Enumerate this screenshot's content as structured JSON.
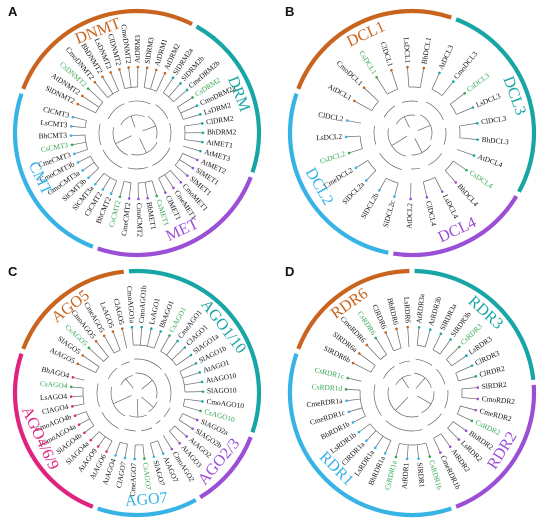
{
  "colors": {
    "highlight": "#34a853",
    "orange": "#c8641e",
    "teal": "#17a5a5",
    "purple": "#9b4fd6",
    "blue": "#37b3e6",
    "magenta": "#e0237f",
    "pink": "#d8328f",
    "darkteal": "#0e8f92"
  },
  "panels": [
    {
      "label": "A",
      "clades": [
        {
          "name": "DNMT",
          "color": "orange",
          "start": -160,
          "end": -62
        },
        {
          "name": "DRM",
          "color": "teal",
          "start": -62,
          "end": 20
        },
        {
          "name": "MET",
          "color": "purple",
          "start": 20,
          "end": 110
        },
        {
          "name": "CMT",
          "color": "blue",
          "start": 110,
          "end": 200
        }
      ],
      "leaves": [
        {
          "t": "SlDNMT2",
          "hl": false
        },
        {
          "t": "AtDNMT2",
          "hl": false
        },
        {
          "t": "CsDNMT2",
          "hl": true
        },
        {
          "t": "CmoDNMT2",
          "hl": false
        },
        {
          "t": "BhDNMT2",
          "hl": false
        },
        {
          "t": "LsDNMT2",
          "hl": false
        },
        {
          "t": "ClDNMT2",
          "hl": false
        },
        {
          "t": "CmeDNMT2",
          "hl": false
        },
        {
          "t": "AtDRM3",
          "hl": false
        },
        {
          "t": "SlDRM3",
          "hl": false
        },
        {
          "t": "AtDRM1",
          "hl": false
        },
        {
          "t": "AtDRM2",
          "hl": false
        },
        {
          "t": "SlDRM2a",
          "hl": false
        },
        {
          "t": "SlDRM2b",
          "hl": false
        },
        {
          "t": "CmeDRM2b",
          "hl": false
        },
        {
          "t": "CsDRM2",
          "hl": true
        },
        {
          "t": "CmoDRM2a",
          "hl": false
        },
        {
          "t": "LsDRM2",
          "hl": false
        },
        {
          "t": "ClDRM2",
          "hl": false
        },
        {
          "t": "BhDRM2",
          "hl": false
        },
        {
          "t": "AtMET1",
          "hl": false
        },
        {
          "t": "AtMET3",
          "hl": false
        },
        {
          "t": "AtMET2",
          "hl": false
        },
        {
          "t": "SlMET1",
          "hl": false
        },
        {
          "t": "SlMET1",
          "hl": false
        },
        {
          "t": "CmoMET1",
          "hl": false
        },
        {
          "t": "CmeMET1",
          "hl": false
        },
        {
          "t": "ClMET1",
          "hl": false
        },
        {
          "t": "CsMET1",
          "hl": true
        },
        {
          "t": "BhMET1",
          "hl": false
        },
        {
          "t": "CmoCMT2",
          "hl": false
        },
        {
          "t": "CmeCMT2",
          "hl": false
        },
        {
          "t": "CsCMT2",
          "hl": true
        },
        {
          "t": "BhCMT2",
          "hl": false
        },
        {
          "t": "ClCMT2",
          "hl": false
        },
        {
          "t": "SlCMT3a",
          "hl": false
        },
        {
          "t": "SlCMT3b",
          "hl": false
        },
        {
          "t": "CmoCMT3a",
          "hl": false
        },
        {
          "t": "CmoCMT3b",
          "hl": false
        },
        {
          "t": "CmeCMT3",
          "hl": false
        },
        {
          "t": "CsCMT3",
          "hl": true
        },
        {
          "t": "BhCMT3",
          "hl": false
        },
        {
          "t": "LsCMT3",
          "hl": false
        },
        {
          "t": "ClCMT3",
          "hl": false
        }
      ]
    },
    {
      "label": "B",
      "clades": [
        {
          "name": "DCL1",
          "color": "orange",
          "start": -160,
          "end": -70
        },
        {
          "name": "DCL3",
          "color": "teal",
          "start": -70,
          "end": 30
        },
        {
          "name": "DCL4",
          "color": "purple",
          "start": 30,
          "end": 100
        },
        {
          "name": "DCL2",
          "color": "blue",
          "start": 100,
          "end": 200
        }
      ],
      "leaves": [
        {
          "t": "AtDCL1",
          "hl": false
        },
        {
          "t": "CmoDCL1",
          "hl": false
        },
        {
          "t": "CsDCL1",
          "hl": true
        },
        {
          "t": "ClDCL1",
          "hl": false
        },
        {
          "t": "LsDCL1",
          "hl": false
        },
        {
          "t": "BhDCL1",
          "hl": false
        },
        {
          "t": "AtDCL3",
          "hl": false
        },
        {
          "t": "CmoDCL3",
          "hl": false
        },
        {
          "t": "CsDCL3",
          "hl": true
        },
        {
          "t": "LsDCL3",
          "hl": false
        },
        {
          "t": "ClDCL3",
          "hl": false
        },
        {
          "t": "BhDCL3",
          "hl": false
        },
        {
          "t": "AtDCL4",
          "hl": false
        },
        {
          "t": "CsDCL4",
          "hl": true
        },
        {
          "t": "BhDCL4",
          "hl": false
        },
        {
          "t": "LsDCL4",
          "hl": false
        },
        {
          "t": "ClDCL4",
          "hl": false
        },
        {
          "t": "AtDCL2",
          "hl": false
        },
        {
          "t": "SlDCL2c",
          "hl": false
        },
        {
          "t": "SlDCL2b",
          "hl": false
        },
        {
          "t": "SlDCL2a",
          "hl": false
        },
        {
          "t": "CmeDCL2",
          "hl": false
        },
        {
          "t": "CsDCL2",
          "hl": true
        },
        {
          "t": "LsDCL2",
          "hl": false
        },
        {
          "t": "ClDCL2",
          "hl": false
        }
      ]
    },
    {
      "label": "C",
      "clades": [
        {
          "name": "AGO5",
          "color": "orange",
          "start": -160,
          "end": -95
        },
        {
          "name": "AGO1/10",
          "color": "teal",
          "start": -95,
          "end": 20
        },
        {
          "name": "AGO2/3",
          "color": "purple",
          "start": 20,
          "end": 60
        },
        {
          "name": "AGO7",
          "color": "blue",
          "start": 60,
          "end": 110
        },
        {
          "name": "AGO4/6/9",
          "color": "magenta",
          "start": 110,
          "end": 200
        }
      ],
      "leaves": [
        {
          "t": "AtAGO5",
          "hl": false
        },
        {
          "t": "SlAGO5",
          "hl": false
        },
        {
          "t": "CsAGO5",
          "hl": true
        },
        {
          "t": "CmoAGO5",
          "hl": false
        },
        {
          "t": "CmeAGO5",
          "hl": false
        },
        {
          "t": "LsAGO5",
          "hl": false
        },
        {
          "t": "ClAGO5",
          "hl": false
        },
        {
          "t": "CmoAGO1a",
          "hl": false
        },
        {
          "t": "CmoAGO1b",
          "hl": false
        },
        {
          "t": "LsAGO1",
          "hl": false
        },
        {
          "t": "BhAGO1",
          "hl": false
        },
        {
          "t": "CsAGO1",
          "hl": true
        },
        {
          "t": "CmeAGO1",
          "hl": false
        },
        {
          "t": "ClAGO1",
          "hl": false
        },
        {
          "t": "SlAGO1a",
          "hl": false
        },
        {
          "t": "SlAGO1b",
          "hl": false
        },
        {
          "t": "AtAGO1",
          "hl": false
        },
        {
          "t": "AtAGO10",
          "hl": false
        },
        {
          "t": "SlAGO10",
          "hl": false
        },
        {
          "t": "CmoAGO10",
          "hl": false
        },
        {
          "t": "CsAGO10",
          "hl": true
        },
        {
          "t": "SlAGO2a",
          "hl": false
        },
        {
          "t": "SlAGO2b",
          "hl": false
        },
        {
          "t": "AtAGO2",
          "hl": false
        },
        {
          "t": "AtAGO3",
          "hl": false
        },
        {
          "t": "CmoAGO2",
          "hl": false
        },
        {
          "t": "AtAGO7",
          "hl": false
        },
        {
          "t": "SlAGO7",
          "hl": false
        },
        {
          "t": "CsAGO7",
          "hl": true
        },
        {
          "t": "CmeAGO7",
          "hl": false
        },
        {
          "t": "ClAGO7",
          "hl": false
        },
        {
          "t": "AtAGO4",
          "hl": false
        },
        {
          "t": "AtAGO6",
          "hl": false
        },
        {
          "t": "AtAGO9",
          "hl": false
        },
        {
          "t": "SlAGO4a",
          "hl": false
        },
        {
          "t": "SlAGO4b",
          "hl": false
        },
        {
          "t": "CmoAGO4a",
          "hl": false
        },
        {
          "t": "CmoAGO4b",
          "hl": false
        },
        {
          "t": "ClAGO4",
          "hl": false
        },
        {
          "t": "LsAGO4",
          "hl": false
        },
        {
          "t": "CsAGO4",
          "hl": true
        },
        {
          "t": "BhAGO4",
          "hl": false
        }
      ]
    },
    {
      "label": "D",
      "clades": [
        {
          "name": "RDR6",
          "color": "orange",
          "start": -160,
          "end": -90
        },
        {
          "name": "RDR3",
          "color": "teal",
          "start": -90,
          "end": -5
        },
        {
          "name": "RDR2",
          "color": "purple",
          "start": -5,
          "end": 70
        },
        {
          "name": "RDR1",
          "color": "blue",
          "start": 70,
          "end": 200
        }
      ],
      "leaves": [
        {
          "t": "SlRDR6b",
          "hl": false
        },
        {
          "t": "SlRDR6a",
          "hl": false
        },
        {
          "t": "CmoRDR6",
          "hl": false
        },
        {
          "t": "CsRDR6",
          "hl": true
        },
        {
          "t": "ClRDR6",
          "hl": false
        },
        {
          "t": "BhRDR6",
          "hl": false
        },
        {
          "t": "LsRDR6",
          "hl": false
        },
        {
          "t": "AtRDR3a",
          "hl": false
        },
        {
          "t": "AtRDR3b",
          "hl": false
        },
        {
          "t": "SlRDR3a",
          "hl": false
        },
        {
          "t": "SlRDR3b",
          "hl": false
        },
        {
          "t": "CsRDR3",
          "hl": true
        },
        {
          "t": "LsRDR3",
          "hl": false
        },
        {
          "t": "ClRDR3",
          "hl": false
        },
        {
          "t": "ClRDR2",
          "hl": false
        },
        {
          "t": "SlRDR2",
          "hl": false
        },
        {
          "t": "CmoRDR2",
          "hl": false
        },
        {
          "t": "CmeRDR2",
          "hl": false
        },
        {
          "t": "CsRDR2",
          "hl": true
        },
        {
          "t": "BhRDR2",
          "hl": false
        },
        {
          "t": "LsRDR2",
          "hl": false
        },
        {
          "t": "AtRDR2",
          "hl": false
        },
        {
          "t": "CmeRDR1b",
          "hl": false
        },
        {
          "t": "CsRDR1b",
          "hl": true
        },
        {
          "t": "SlRDR1",
          "hl": false
        },
        {
          "t": "AtRDR1",
          "hl": false
        },
        {
          "t": "CsRDR1a",
          "hl": true
        },
        {
          "t": "BhRDR1a",
          "hl": false
        },
        {
          "t": "LsRDR1a",
          "hl": false
        },
        {
          "t": "ClRDR1a",
          "hl": false
        },
        {
          "t": "LsRDR1b",
          "hl": false
        },
        {
          "t": "BhRDR1b",
          "hl": false
        },
        {
          "t": "CmeRDR1c",
          "hl": false
        },
        {
          "t": "CmeRDR1a",
          "hl": false
        },
        {
          "t": "CsRDR1d",
          "hl": true
        },
        {
          "t": "CsRDR1c",
          "hl": true
        }
      ]
    }
  ]
}
